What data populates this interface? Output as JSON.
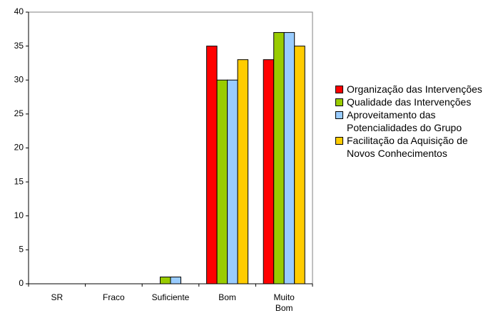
{
  "chart_data": {
    "type": "bar",
    "categories": [
      "SR",
      "Fraco",
      "Suficiente",
      "Bom",
      "Muito Bom"
    ],
    "series": [
      {
        "name": "Organização das Intervenções",
        "color": "#ff0000",
        "values": [
          0,
          0,
          0,
          35,
          33
        ]
      },
      {
        "name": "Qualidade das Intervenções",
        "color": "#99cc00",
        "values": [
          0,
          0,
          1,
          30,
          37
        ]
      },
      {
        "name": "Aproveitamento das Potencialidades do Grupo",
        "color": "#99ccff",
        "values": [
          0,
          0,
          1,
          30,
          37
        ]
      },
      {
        "name": "Facilitação da Aquisição de Novos Conhecimentos",
        "color": "#ffcc00",
        "values": [
          0,
          0,
          0,
          33,
          35
        ]
      }
    ],
    "ylim": [
      0,
      40
    ],
    "yticks": [
      0,
      5,
      10,
      15,
      20,
      25,
      30,
      35,
      40
    ],
    "grid": false,
    "legend": "right"
  }
}
